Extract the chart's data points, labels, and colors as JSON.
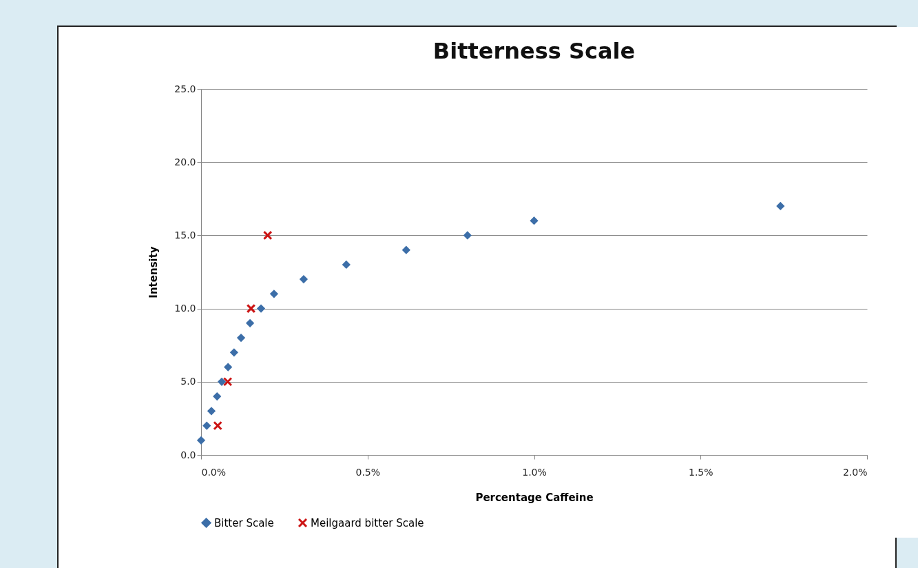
{
  "chart_data": {
    "type": "scatter",
    "title": "Bitterness Scale",
    "xlabel": "Percentage Caffeine",
    "ylabel": "Intensity",
    "xlim": [
      0,
      2
    ],
    "xticks": [
      {
        "value": 0,
        "label": "0.0%"
      },
      {
        "value": 0.5,
        "label": "0.5%"
      },
      {
        "value": 1,
        "label": "1.0%"
      },
      {
        "value": 1.5,
        "label": "1.5%"
      },
      {
        "value": 2,
        "label": "2.0%"
      }
    ],
    "ylim": [
      0,
      25
    ],
    "yticks": [
      {
        "value": 0,
        "label": "0.0"
      },
      {
        "value": 5,
        "label": "5.0"
      },
      {
        "value": 10,
        "label": "10.0"
      },
      {
        "value": 15,
        "label": "15.0"
      },
      {
        "value": 20,
        "label": "20.0"
      },
      {
        "value": 25,
        "label": "25.0"
      }
    ],
    "grid": "y",
    "legend": "bottom",
    "series": [
      {
        "name": "Bitter Scale",
        "color": "#3c6ea8",
        "marker": "diamond",
        "x": [
          0,
          0.017,
          0.031,
          0.048,
          0.062,
          0.081,
          0.099,
          0.12,
          0.147,
          0.18,
          0.219,
          0.308,
          0.436,
          0.616,
          0.8,
          1.0,
          1.74
        ],
        "values": [
          1,
          2,
          3,
          4,
          5,
          6,
          7,
          8,
          9,
          10,
          11,
          12,
          13,
          14,
          15,
          16,
          17
        ]
      },
      {
        "name": "Meilgaard bitter Scale",
        "color": "#cc1414",
        "marker": "cross",
        "x": [
          0.05,
          0.08,
          0.15,
          0.2
        ],
        "values": [
          2,
          5,
          10,
          15
        ]
      }
    ]
  }
}
